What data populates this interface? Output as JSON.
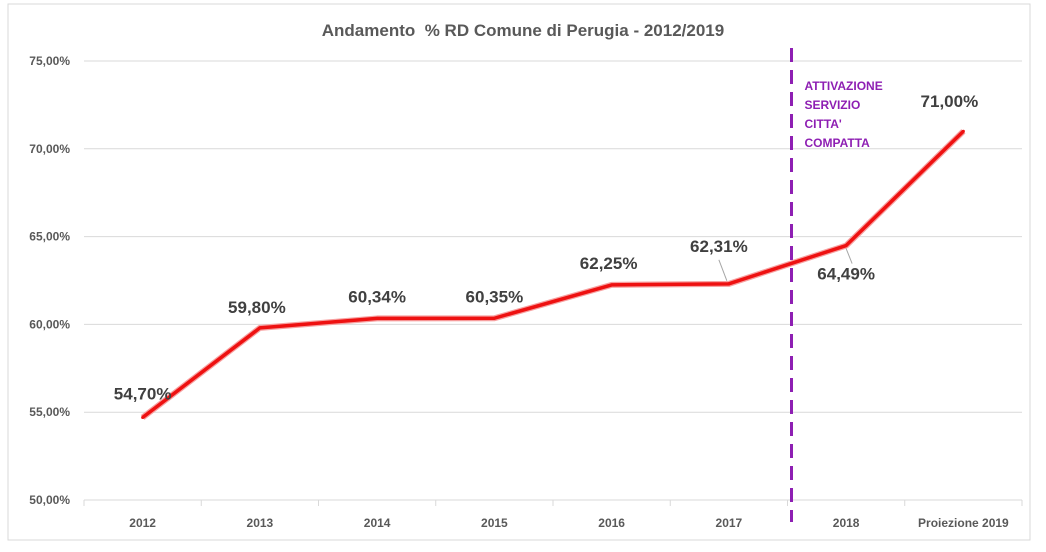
{
  "chart_data": {
    "type": "line",
    "title": "Andamento  % RD Comune di Perugia - 2012/2019",
    "categories": [
      "2012",
      "2013",
      "2014",
      "2015",
      "2016",
      "2017",
      "2018",
      "Proiezione 2019"
    ],
    "series": [
      {
        "values": [
          54.7,
          59.8,
          60.34,
          60.35,
          62.25,
          62.31,
          64.49,
          71.0
        ],
        "labels": [
          "54,70%",
          "59,80%",
          "60,34%",
          "60,35%",
          "62,25%",
          "62,31%",
          "64,49%",
          "71,00%"
        ]
      }
    ],
    "ylim": [
      50,
      75
    ],
    "yticks": [
      50,
      55,
      60,
      65,
      70,
      75
    ],
    "ytick_labels": [
      "50,00%",
      "55,00%",
      "60,00%",
      "65,00%",
      "70,00%",
      "75,00%"
    ],
    "grid": true,
    "line_color": "#ee1111",
    "annotation": {
      "position_between": [
        "2017",
        "2018"
      ],
      "lines": [
        "ATTIVAZIONE",
        "SERVIZIO",
        "CITTA'",
        "COMPATTA"
      ],
      "color": "#8e1fb3",
      "style": "dashed vertical line"
    }
  }
}
